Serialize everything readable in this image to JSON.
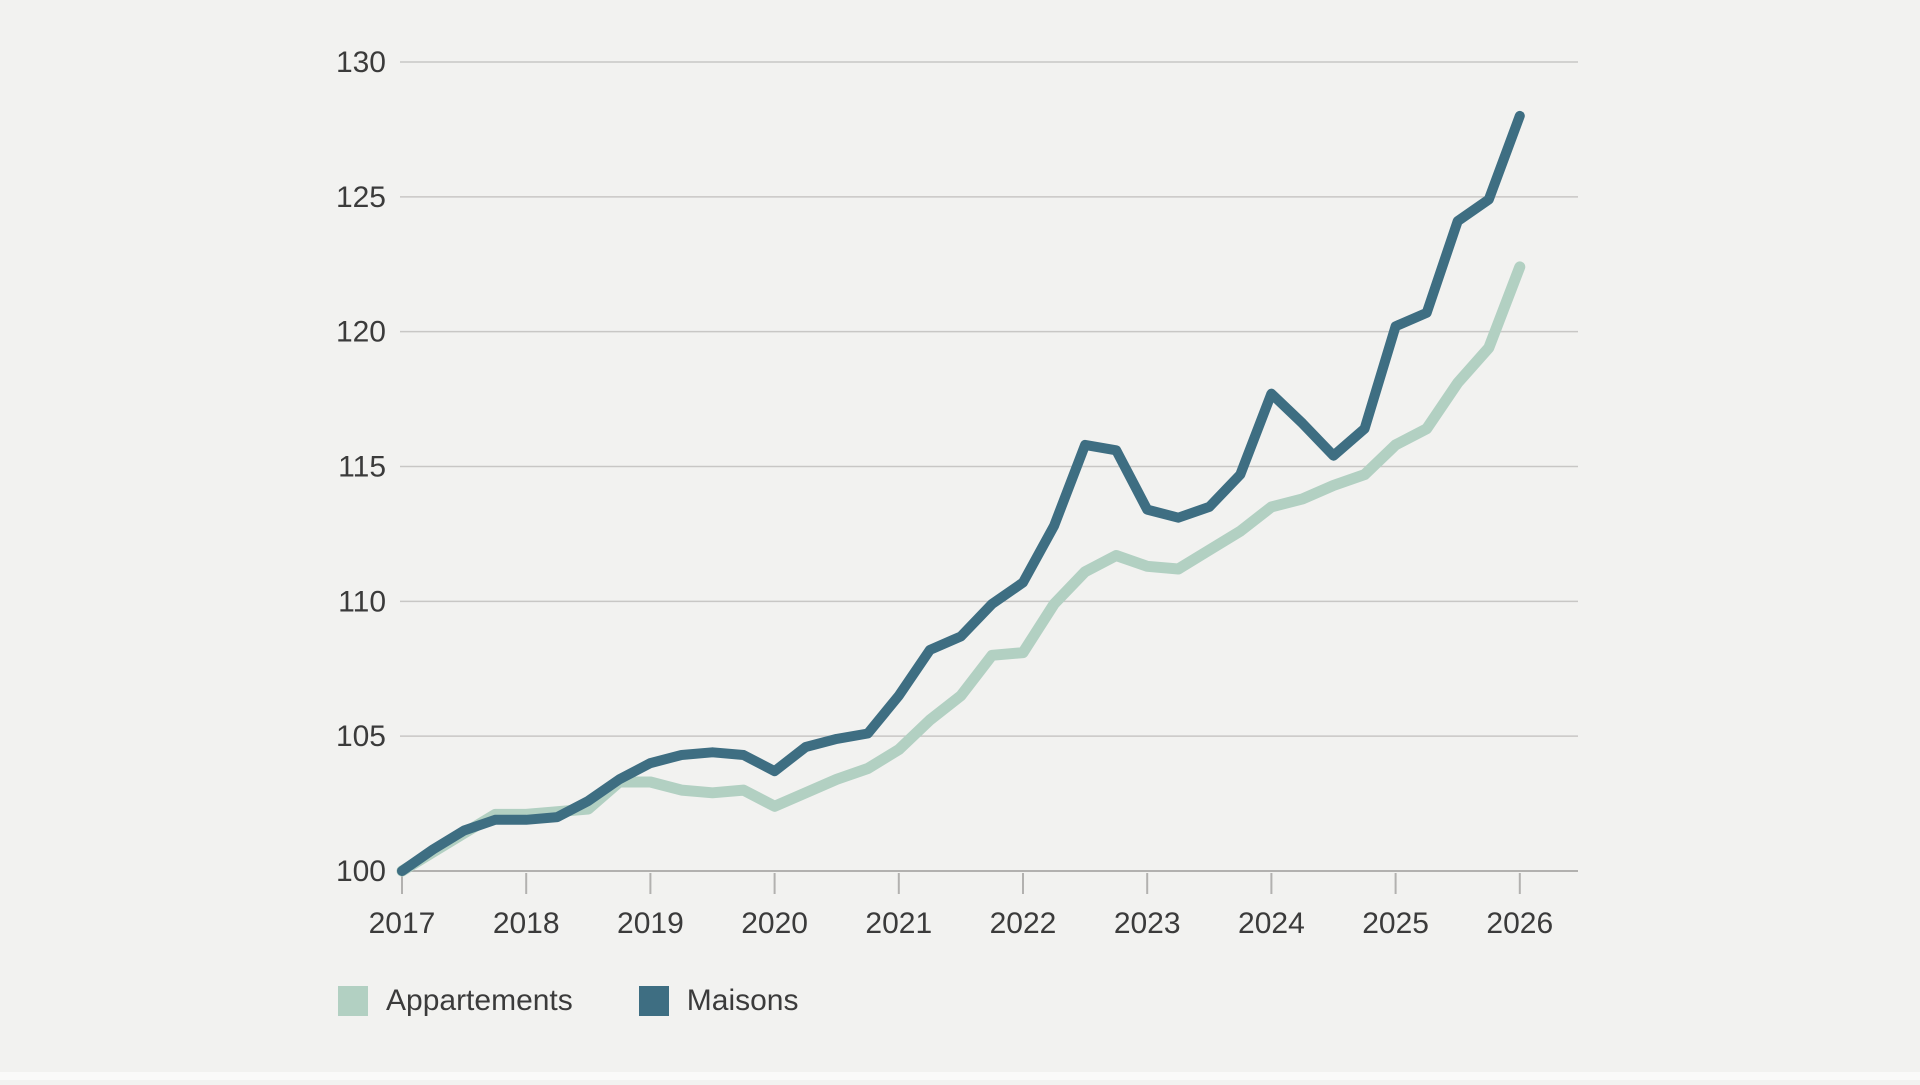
{
  "page": {
    "background_color": "#f2f2f0",
    "text_color": "#3b3b3b",
    "gridline_color": "#c8c7c5",
    "axis_line_color": "#b2b1af"
  },
  "legend": {
    "items": [
      {
        "label": "Appartements",
        "color": "#b2d0c2"
      },
      {
        "label": "Maisons",
        "color": "#3e6e82"
      }
    ]
  },
  "chart_data": {
    "type": "line",
    "title": "",
    "xlabel": "",
    "ylabel": "",
    "grid": true,
    "legend_position": "bottom-left",
    "ylim": [
      100,
      130
    ],
    "y_ticks": [
      100,
      105,
      110,
      115,
      120,
      125,
      130
    ],
    "x_tick_years": [
      2017,
      2018,
      2019,
      2020,
      2021,
      2022,
      2023,
      2024,
      2025,
      2026
    ],
    "x_frequency": "quarterly",
    "x": [
      2017.0,
      2017.25,
      2017.5,
      2017.75,
      2018.0,
      2018.25,
      2018.5,
      2018.75,
      2019.0,
      2019.25,
      2019.5,
      2019.75,
      2020.0,
      2020.25,
      2020.5,
      2020.75,
      2021.0,
      2021.25,
      2021.5,
      2021.75,
      2022.0,
      2022.25,
      2022.5,
      2022.75,
      2023.0,
      2023.25,
      2023.5,
      2023.75,
      2024.0,
      2024.25,
      2024.5,
      2024.75,
      2025.0,
      2025.25,
      2025.5,
      2025.75,
      2026.0
    ],
    "series": [
      {
        "name": "Appartements",
        "color": "#b2d0c2",
        "stroke_width": 11,
        "values": [
          100.0,
          100.7,
          101.4,
          102.1,
          102.1,
          102.2,
          102.3,
          103.3,
          103.3,
          103.0,
          102.9,
          103.0,
          102.4,
          102.9,
          103.4,
          103.8,
          104.5,
          105.6,
          106.5,
          108.0,
          108.1,
          109.9,
          111.1,
          111.7,
          111.3,
          111.2,
          111.9,
          112.6,
          113.5,
          113.8,
          114.3,
          114.7,
          115.8,
          116.4,
          118.1,
          119.4,
          122.4
        ]
      },
      {
        "name": "Maisons",
        "color": "#3e6e82",
        "stroke_width": 10,
        "values": [
          100.0,
          100.8,
          101.5,
          101.9,
          101.9,
          102.0,
          102.6,
          103.4,
          104.0,
          104.3,
          104.4,
          104.3,
          103.7,
          104.6,
          104.9,
          105.1,
          106.5,
          108.2,
          108.7,
          109.9,
          110.7,
          112.8,
          115.8,
          115.6,
          113.4,
          113.1,
          113.5,
          114.7,
          117.7,
          116.6,
          115.4,
          116.4,
          120.2,
          120.7,
          124.1,
          124.9,
          128.0
        ]
      }
    ]
  }
}
